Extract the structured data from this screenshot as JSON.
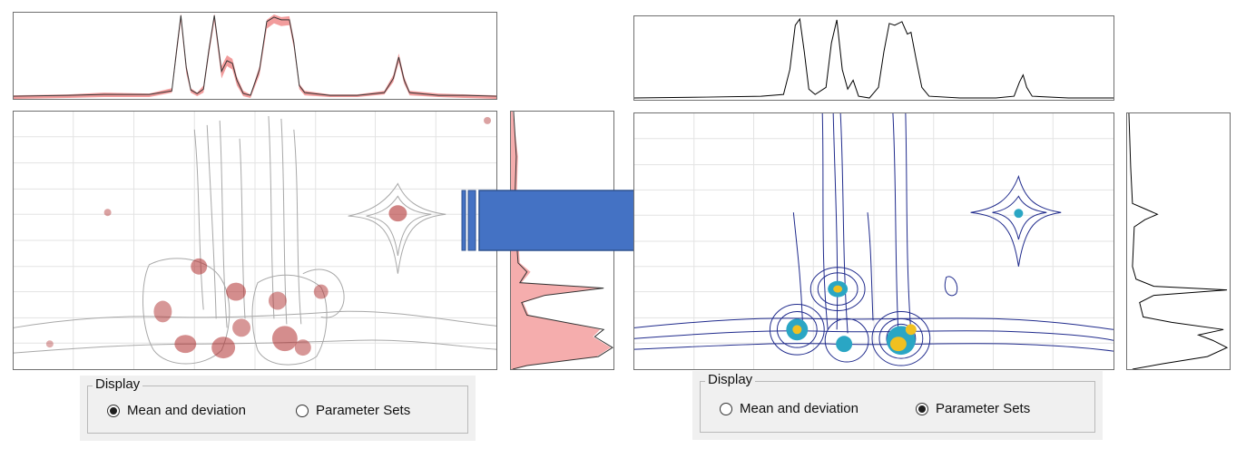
{
  "left_view": {
    "mode": "Mean and deviation",
    "colors": {
      "mean_line": "#3a3a3a",
      "deviation": "#d63a3a",
      "contour": "#9a9a9a",
      "peak": "#b03030"
    }
  },
  "right_view": {
    "mode": "Parameter Sets",
    "colors": {
      "line": "#000000",
      "contour": "#1f2a8c",
      "peak_inner": "#f0c020",
      "peak_mid": "#2aa6c4"
    }
  },
  "arrow": {
    "color": "#4472c4",
    "border": "#2f528f"
  },
  "display_left": {
    "title": "Display",
    "options": [
      {
        "label": "Mean and deviation",
        "selected": true
      },
      {
        "label": "Parameter Sets",
        "selected": false
      }
    ]
  },
  "display_right": {
    "title": "Display",
    "options": [
      {
        "label": "Mean and deviation",
        "selected": false
      },
      {
        "label": "Parameter Sets",
        "selected": true
      }
    ]
  }
}
